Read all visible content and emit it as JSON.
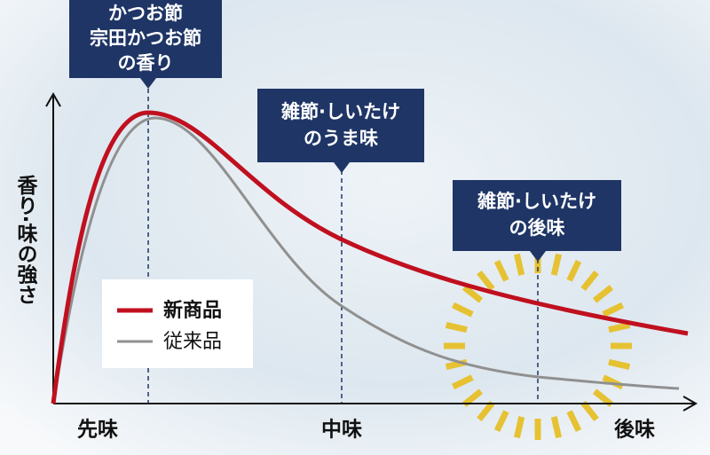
{
  "y_axis_label": "香り·味の強さ",
  "x_labels": [
    "先味",
    "中味",
    "後味"
  ],
  "callouts": [
    {
      "lines": [
        "かつお節",
        "宗田かつお節",
        "の香り"
      ]
    },
    {
      "lines": [
        "雑節·しいたけ",
        "のうま味"
      ]
    },
    {
      "lines": [
        "雑節·しいたけ",
        "の後味"
      ]
    }
  ],
  "legend": [
    "新商品",
    "従来品"
  ]
}
